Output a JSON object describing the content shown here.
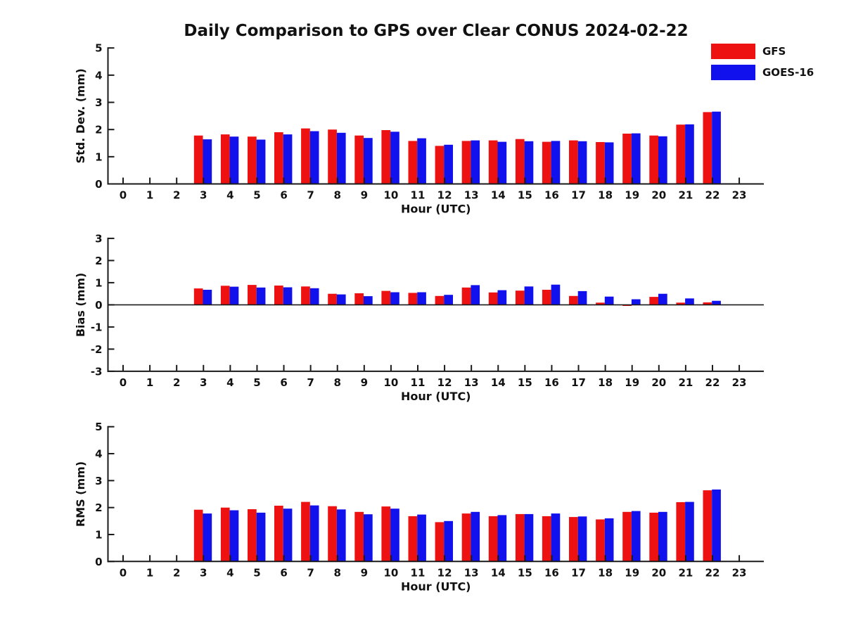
{
  "page": {
    "title": "Daily Comparison to GPS over Clear CONUS 2024-02-22"
  },
  "legend": [
    {
      "label": "GFS",
      "color": "#ee1111"
    },
    {
      "label": "GOES-16",
      "color": "#1111ee"
    }
  ],
  "colors": {
    "gfs_red": "#ee1111",
    "goes_blue": "#1111ee",
    "axis": "#1a1a1a"
  },
  "chart_data": [
    {
      "type": "bar",
      "panel": "std_dev",
      "ylabel": "Std. Dev. (mm)",
      "xlabel": "Hour (UTC)",
      "ylim": [
        0,
        5
      ],
      "yticks": [
        0,
        1,
        2,
        3,
        4,
        5
      ],
      "grid": false,
      "legend_position": "upper-right-outside",
      "categories": [
        0,
        1,
        2,
        3,
        4,
        5,
        6,
        7,
        8,
        9,
        10,
        11,
        12,
        13,
        14,
        15,
        16,
        17,
        18,
        19,
        20,
        21,
        22,
        23
      ],
      "series": [
        {
          "name": "GFS",
          "color": "#ee1111",
          "values": [
            null,
            null,
            null,
            1.78,
            1.82,
            1.74,
            1.9,
            2.04,
            2.0,
            1.78,
            1.98,
            1.58,
            1.4,
            1.58,
            1.6,
            1.65,
            1.55,
            1.6,
            1.54,
            1.85,
            1.78,
            2.18,
            2.64,
            null
          ]
        },
        {
          "name": "GOES-16",
          "color": "#1111ee",
          "values": [
            null,
            null,
            null,
            1.64,
            1.74,
            1.63,
            1.82,
            1.94,
            1.88,
            1.69,
            1.92,
            1.68,
            1.44,
            1.6,
            1.55,
            1.57,
            1.58,
            1.57,
            1.53,
            1.86,
            1.75,
            2.19,
            2.66,
            null
          ]
        }
      ]
    },
    {
      "type": "bar",
      "panel": "bias",
      "ylabel": "Bias (mm)",
      "xlabel": "Hour (UTC)",
      "ylim": [
        -3,
        3
      ],
      "yticks": [
        -3,
        -2,
        -1,
        0,
        1,
        2,
        3
      ],
      "zero_line": true,
      "grid": false,
      "categories": [
        0,
        1,
        2,
        3,
        4,
        5,
        6,
        7,
        8,
        9,
        10,
        11,
        12,
        13,
        14,
        15,
        16,
        17,
        18,
        19,
        20,
        21,
        22,
        23
      ],
      "series": [
        {
          "name": "GFS",
          "color": "#ee1111",
          "values": [
            null,
            null,
            null,
            0.74,
            0.86,
            0.9,
            0.87,
            0.83,
            0.5,
            0.52,
            0.63,
            0.54,
            0.4,
            0.78,
            0.56,
            0.64,
            0.68,
            0.4,
            0.1,
            -0.05,
            0.36,
            0.1,
            0.11,
            null
          ]
        },
        {
          "name": "GOES-16",
          "color": "#1111ee",
          "values": [
            null,
            null,
            null,
            0.68,
            0.82,
            0.78,
            0.79,
            0.75,
            0.47,
            0.39,
            0.57,
            0.57,
            0.45,
            0.89,
            0.66,
            0.83,
            0.91,
            0.62,
            0.37,
            0.25,
            0.5,
            0.29,
            0.18,
            null
          ]
        }
      ]
    },
    {
      "type": "bar",
      "panel": "rms",
      "ylabel": "RMS (mm)",
      "xlabel": "Hour (UTC)",
      "ylim": [
        0,
        5
      ],
      "yticks": [
        0,
        1,
        2,
        3,
        4,
        5
      ],
      "grid": false,
      "categories": [
        0,
        1,
        2,
        3,
        4,
        5,
        6,
        7,
        8,
        9,
        10,
        11,
        12,
        13,
        14,
        15,
        16,
        17,
        18,
        19,
        20,
        21,
        22,
        23
      ],
      "series": [
        {
          "name": "GFS",
          "color": "#ee1111",
          "values": [
            null,
            null,
            null,
            1.92,
            2.0,
            1.94,
            2.07,
            2.21,
            2.05,
            1.84,
            2.04,
            1.68,
            1.46,
            1.78,
            1.68,
            1.76,
            1.68,
            1.65,
            1.56,
            1.84,
            1.81,
            2.2,
            2.64,
            null
          ]
        },
        {
          "name": "GOES-16",
          "color": "#1111ee",
          "values": [
            null,
            null,
            null,
            1.78,
            1.9,
            1.81,
            1.96,
            2.08,
            1.93,
            1.75,
            1.96,
            1.74,
            1.5,
            1.84,
            1.72,
            1.76,
            1.78,
            1.67,
            1.6,
            1.87,
            1.84,
            2.21,
            2.67,
            null
          ]
        }
      ]
    }
  ]
}
